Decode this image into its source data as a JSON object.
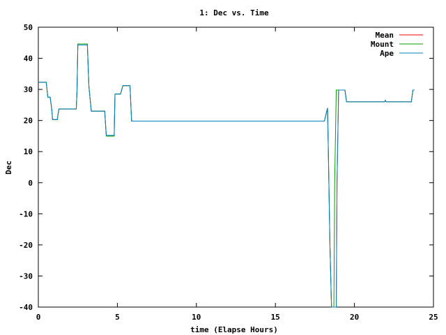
{
  "chart_data": {
    "type": "line",
    "title": "1: Dec vs. Time",
    "xlabel": "time (Elapse Hours)",
    "ylabel": "Dec",
    "xlim": [
      0,
      25
    ],
    "ylim": [
      -40,
      50
    ],
    "xticks": [
      0,
      5,
      10,
      15,
      20,
      25
    ],
    "yticks": [
      -40,
      -30,
      -20,
      -10,
      0,
      10,
      20,
      30,
      40,
      50
    ],
    "grid": false,
    "legend_position": "top-right",
    "series": [
      {
        "name": "Mean",
        "color": "#ff0000",
        "points": [
          [
            0,
            32.3
          ],
          [
            0.5,
            32.3
          ],
          [
            0.6,
            27.5
          ],
          [
            0.75,
            27.5
          ],
          [
            0.85,
            23.5
          ],
          [
            0.9,
            20.3
          ],
          [
            1.2,
            20.3
          ],
          [
            1.3,
            23.7
          ],
          [
            2.4,
            23.7
          ],
          [
            2.45,
            30
          ],
          [
            2.5,
            44.6
          ],
          [
            3.1,
            44.6
          ],
          [
            3.2,
            31
          ],
          [
            3.35,
            23
          ],
          [
            4.2,
            23
          ],
          [
            4.3,
            15
          ],
          [
            4.8,
            15
          ],
          [
            4.85,
            28.5
          ],
          [
            5.2,
            28.5
          ],
          [
            5.35,
            31.2
          ],
          [
            5.8,
            31.2
          ],
          [
            5.9,
            19.8
          ],
          [
            18.1,
            19.8
          ],
          [
            18.25,
            23
          ],
          [
            18.3,
            24
          ],
          [
            18.35,
            10
          ],
          [
            18.45,
            -20
          ],
          [
            18.55,
            -40
          ],
          [
            18.85,
            -40
          ],
          [
            18.9,
            0
          ],
          [
            19,
            29.8
          ],
          [
            19.4,
            29.8
          ],
          [
            19.5,
            26
          ],
          [
            21.9,
            26
          ],
          [
            21.95,
            26.5
          ],
          [
            22,
            26
          ],
          [
            23.6,
            26
          ],
          [
            23.7,
            29.8
          ],
          [
            23.8,
            29.8
          ]
        ]
      },
      {
        "name": "Mount",
        "color": "#00a000",
        "points": [
          [
            0,
            32.3
          ],
          [
            0.5,
            32.3
          ],
          [
            0.6,
            27.5
          ],
          [
            0.75,
            27.5
          ],
          [
            0.85,
            23.5
          ],
          [
            0.9,
            20.3
          ],
          [
            1.2,
            20.3
          ],
          [
            1.3,
            23.7
          ],
          [
            2.4,
            23.7
          ],
          [
            2.45,
            30
          ],
          [
            2.5,
            44.6
          ],
          [
            3.1,
            44.6
          ],
          [
            3.2,
            31
          ],
          [
            3.35,
            23
          ],
          [
            4.2,
            23
          ],
          [
            4.3,
            15
          ],
          [
            4.8,
            15
          ],
          [
            4.85,
            28.5
          ],
          [
            5.2,
            28.5
          ],
          [
            5.35,
            31.2
          ],
          [
            5.8,
            31.2
          ],
          [
            5.9,
            19.8
          ],
          [
            18.1,
            19.8
          ],
          [
            18.25,
            23
          ],
          [
            18.3,
            24
          ],
          [
            18.35,
            10
          ],
          [
            18.45,
            -20
          ],
          [
            18.55,
            -40
          ],
          [
            18.7,
            -40
          ],
          [
            18.75,
            0
          ],
          [
            18.85,
            29.8
          ],
          [
            19.4,
            29.8
          ],
          [
            19.5,
            26
          ],
          [
            21.9,
            26
          ],
          [
            21.95,
            26.5
          ],
          [
            22,
            26
          ],
          [
            23.6,
            26
          ],
          [
            23.7,
            29.8
          ],
          [
            23.8,
            29.8
          ]
        ]
      },
      {
        "name": "Ape",
        "color": "#0080c0",
        "points": [
          [
            0,
            32.3
          ],
          [
            0.5,
            32.3
          ],
          [
            0.6,
            27.5
          ],
          [
            0.75,
            27.5
          ],
          [
            0.85,
            23.5
          ],
          [
            0.9,
            20.3
          ],
          [
            1.2,
            20.3
          ],
          [
            1.3,
            23.7
          ],
          [
            2.4,
            23.7
          ],
          [
            2.45,
            30
          ],
          [
            2.5,
            44.3
          ],
          [
            3.1,
            44.3
          ],
          [
            3.2,
            31
          ],
          [
            3.35,
            23
          ],
          [
            4.2,
            23
          ],
          [
            4.3,
            15.2
          ],
          [
            4.8,
            15.2
          ],
          [
            4.85,
            28.5
          ],
          [
            5.2,
            28.5
          ],
          [
            5.35,
            31.2
          ],
          [
            5.8,
            31.2
          ],
          [
            5.9,
            19.8
          ],
          [
            18.1,
            19.8
          ],
          [
            18.25,
            23
          ],
          [
            18.3,
            24
          ],
          [
            18.35,
            10
          ],
          [
            18.45,
            -20
          ],
          [
            18.55,
            -40
          ],
          [
            18.85,
            -40
          ],
          [
            18.9,
            0
          ],
          [
            19,
            29.8
          ],
          [
            19.4,
            29.8
          ],
          [
            19.5,
            26
          ],
          [
            21.9,
            26
          ],
          [
            21.95,
            26.5
          ],
          [
            22,
            26
          ],
          [
            23.6,
            26
          ],
          [
            23.7,
            29.8
          ],
          [
            23.8,
            29.8
          ]
        ]
      }
    ]
  }
}
